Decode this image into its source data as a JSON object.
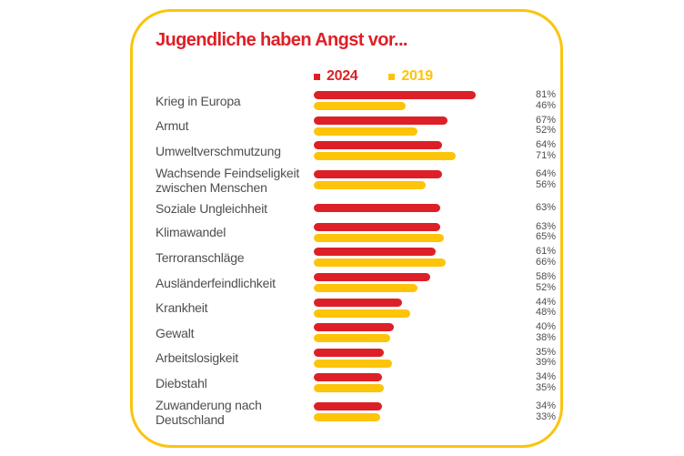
{
  "colors": {
    "red": "#DD2027",
    "yellow": "#FDC40A",
    "border_yellow": "#FBC40D",
    "label_gray": "#4E4E4E",
    "background": "#FFFFFF"
  },
  "chart_data": {
    "type": "bar",
    "orientation": "horizontal",
    "title": "Jugendliche haben Angst vor...",
    "unit": "%",
    "xlim": [
      0,
      100
    ],
    "legend_position": "top",
    "value_labels": "right",
    "categories": [
      "Krieg in Europa",
      "Armut",
      "Umweltverschmutzung",
      "Wachsende Feindseligkeit\nzwischen Menschen",
      "Soziale Ungleichheit",
      "Klimawandel",
      "Terroranschläge",
      "Ausländerfeindlichkeit",
      "Krankheit",
      "Gewalt",
      "Arbeitslosigkeit",
      "Diebstahl",
      "Zuwanderung nach\nDeutschland"
    ],
    "series": [
      {
        "name": "2024",
        "color": "#DD2027",
        "values": [
          81,
          67,
          64,
          64,
          63,
          63,
          61,
          58,
          44,
          40,
          35,
          34,
          34
        ]
      },
      {
        "name": "2019",
        "color": "#FDC40A",
        "values": [
          46,
          52,
          71,
          56,
          null,
          65,
          66,
          52,
          48,
          38,
          39,
          35,
          33
        ]
      }
    ]
  }
}
